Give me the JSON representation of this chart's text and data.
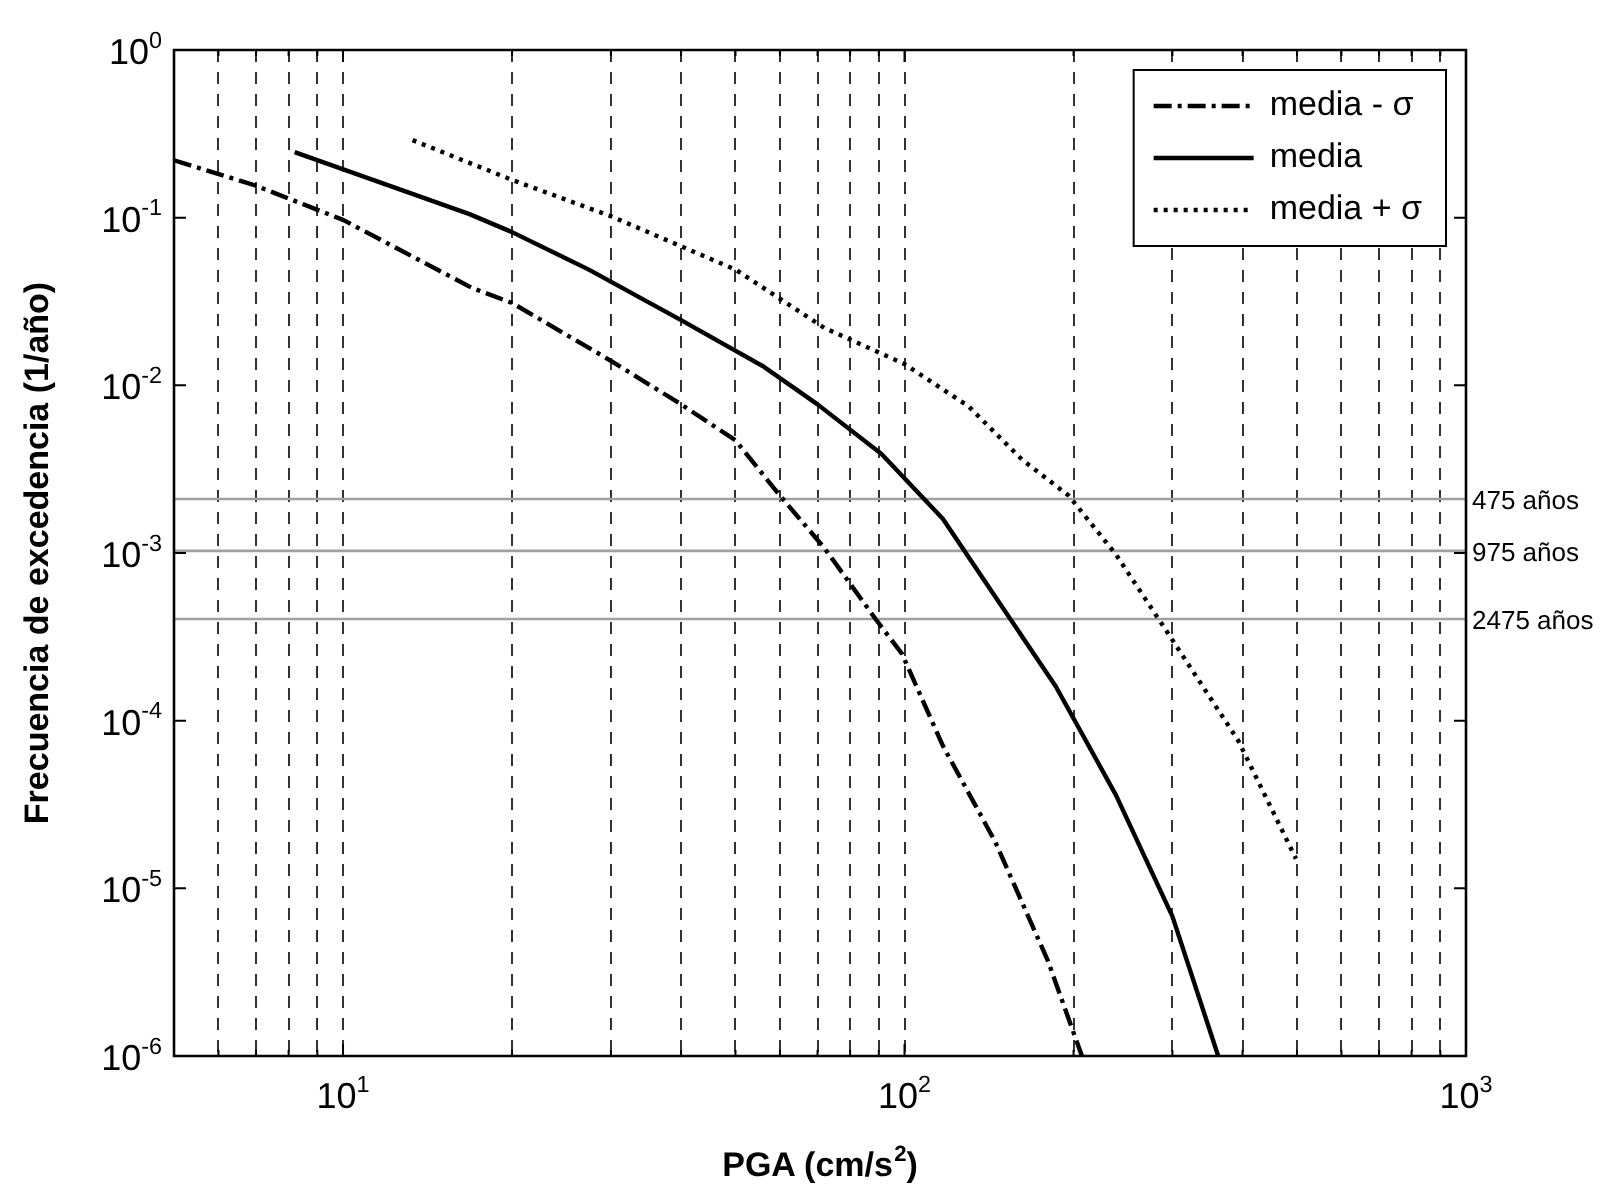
{
  "chart_data": {
    "type": "line",
    "xlabel": "PGA (cm/s$^{2}$)",
    "ylabel": "Frecuencia de excedencia (1/año)",
    "log": "xy",
    "grid": "x",
    "legend": "top right",
    "marker": "none",
    "xlim": [
      5,
      1000
    ],
    "ylim": [
      1e-06,
      1
    ],
    "xticks": [
      {
        "value": 6,
        "label": null
      },
      {
        "value": 7,
        "label": null
      },
      {
        "value": 8,
        "label": null
      },
      {
        "value": 9,
        "label": null
      },
      {
        "value": 10,
        "label": "10$^{1}$"
      },
      {
        "value": 20,
        "label": null
      },
      {
        "value": 30,
        "label": null
      },
      {
        "value": 40,
        "label": null
      },
      {
        "value": 50,
        "label": null
      },
      {
        "value": 60,
        "label": null
      },
      {
        "value": 70,
        "label": null
      },
      {
        "value": 80,
        "label": null
      },
      {
        "value": 90,
        "label": null
      },
      {
        "value": 100,
        "label": "10$^{2}$"
      },
      {
        "value": 200,
        "label": null
      },
      {
        "value": 300,
        "label": null
      },
      {
        "value": 400,
        "label": null
      },
      {
        "value": 500,
        "label": null
      },
      {
        "value": 600,
        "label": null
      },
      {
        "value": 700,
        "label": null
      },
      {
        "value": 800,
        "label": null
      },
      {
        "value": 900,
        "label": null
      },
      {
        "value": 1000,
        "label": "10$^{3}$"
      }
    ],
    "yticks": [
      {
        "value": 1e-06,
        "label": "10$^{-6}$"
      },
      {
        "value": 1e-05,
        "label": "10$^{-5}$"
      },
      {
        "value": 0.0001,
        "label": "10$^{-4}$"
      },
      {
        "value": 0.001,
        "label": "10$^{-3}$"
      },
      {
        "value": 0.01,
        "label": "10$^{-2}$"
      },
      {
        "value": 0.1,
        "label": "10$^{-1}$"
      },
      {
        "value": 1,
        "label": "10$^{0}$"
      }
    ],
    "series": [
      {
        "name": "media - σ",
        "color": "#000000",
        "line_style": "dashdot",
        "x": [
          5,
          7,
          10,
          17,
          20,
          30,
          40,
          50,
          60,
          72,
          89,
          99,
          117,
          145,
          180,
          207
        ],
        "values": [
          0.22,
          0.155,
          0.097,
          0.038,
          0.031,
          0.014,
          0.0077,
          0.0047,
          0.0022,
          0.00107,
          0.0004,
          0.00025,
          7.1e-05,
          1.9e-05,
          3.7e-06,
          1e-06
        ]
      },
      {
        "name": "media",
        "color": "#000000",
        "line_style": "solid",
        "x": [
          8.2,
          16.8,
          20,
          27.4,
          40,
          56,
          70,
          91,
          117,
          145,
          186,
          238,
          300,
          362
        ],
        "values": [
          0.246,
          0.105,
          0.082,
          0.049,
          0.0245,
          0.013,
          0.0077,
          0.0039,
          0.0016,
          0.00055,
          0.00016,
          3.6e-05,
          6.8e-06,
          1e-06
        ]
      },
      {
        "name": "media + σ",
        "color": "#000000",
        "line_style": "dotted",
        "x": [
          13.3,
          20,
          30,
          50,
          72,
          100,
          130,
          162,
          196,
          238,
          295,
          393,
          498
        ],
        "values": [
          0.29,
          0.168,
          0.102,
          0.049,
          0.022,
          0.0134,
          0.0075,
          0.0036,
          0.0022,
          0.00098,
          0.00033,
          7.6e-05,
          1.5e-05
        ]
      }
    ],
    "ref_lines": [
      {
        "axis": "y",
        "value": 0.0021,
        "label": "475 años",
        "color": "#a0a0a0"
      },
      {
        "axis": "y",
        "value": 0.00103,
        "label": "975 años",
        "color": "#a0a0a0"
      },
      {
        "axis": "y",
        "value": 0.000404,
        "label": "2475 años",
        "color": "#a0a0a0"
      }
    ]
  }
}
